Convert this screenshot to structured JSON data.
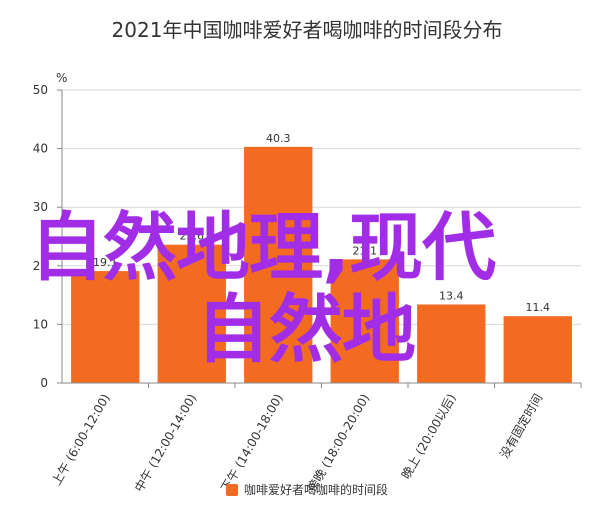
{
  "chart_data": {
    "type": "bar",
    "title": "2021年中国咖啡爱好者喝咖啡的时间段分布",
    "ylabel": "%",
    "xlabel": "",
    "categories": [
      "上午 (6:00-12:00)",
      "中午 (12:00-14:00)",
      "下午 (14:00-18:00)",
      "傍晚 (18:00-20:00)",
      "晚上 (20:00以后)",
      "没有固定时间"
    ],
    "series": [
      {
        "name": "咖啡爱好者喝咖啡的时间段",
        "values": [
          19.1,
          23.6,
          40.3,
          21.1,
          13.4,
          11.4
        ],
        "data_labels": [
          "19.1",
          "23.6",
          "40.3",
          "21.1",
          "13.4",
          "11.4"
        ]
      }
    ],
    "ylim": [
      0,
      50
    ],
    "yticks": [
      "0",
      "10",
      "20",
      "30",
      "40",
      "50"
    ],
    "grid": true,
    "legend_position": "bottom",
    "bar_color": "#f26b21"
  },
  "watermark": {
    "line1": "自然地理,现代",
    "line2": "自然地",
    "color": "#a12ee6"
  }
}
